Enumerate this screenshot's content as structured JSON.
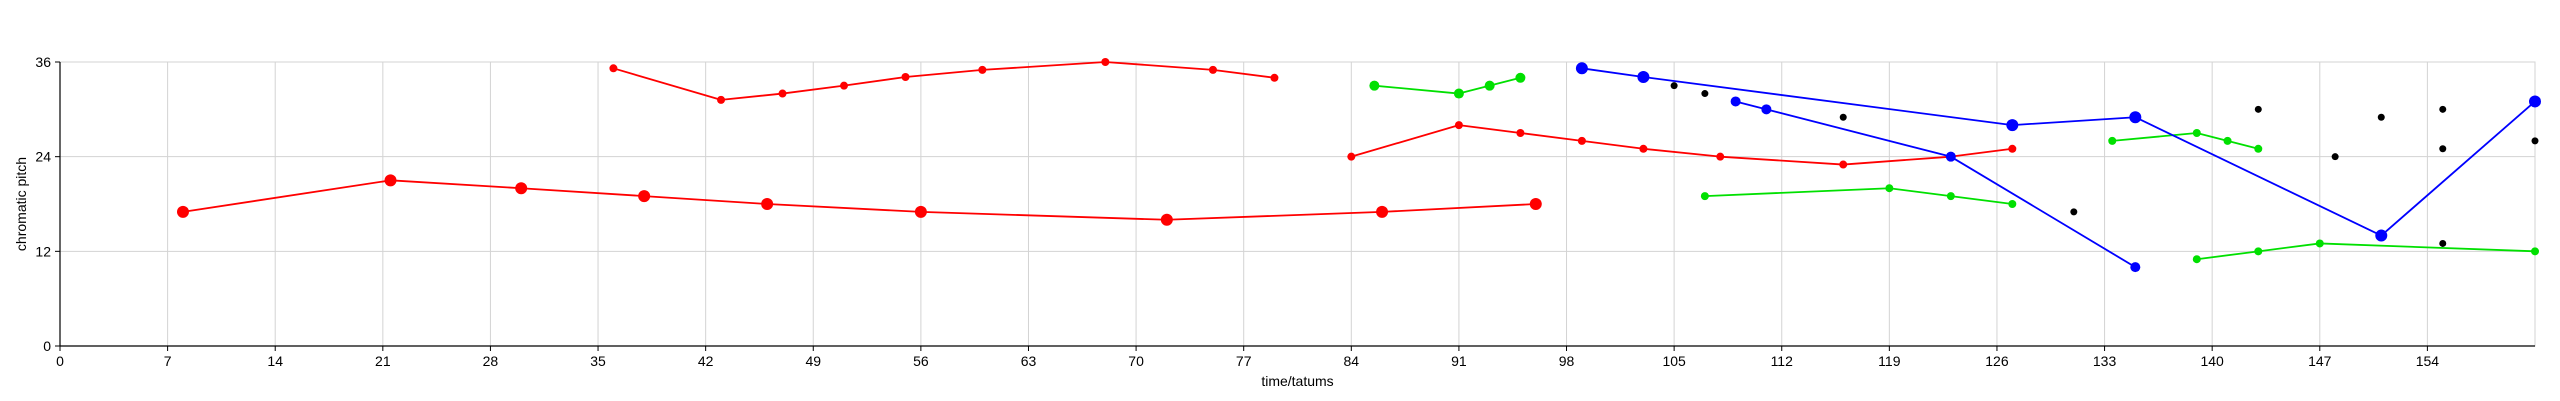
{
  "chart_data": {
    "type": "line",
    "xlabel": "time/tatums",
    "ylabel": "chromatic pitch",
    "xlim": [
      0,
      161
    ],
    "ylim": [
      0,
      36
    ],
    "xticks": [
      0,
      7,
      14,
      21,
      28,
      35,
      42,
      49,
      56,
      63,
      70,
      77,
      84,
      91,
      98,
      105,
      112,
      119,
      126,
      133,
      140,
      147,
      154
    ],
    "yticks": [
      0,
      12,
      24,
      36
    ],
    "grid": true,
    "colors": {
      "red": "#ff0000",
      "green": "#00e000",
      "blue": "#0000ff",
      "black": "#000000",
      "grid": "#d3d3d3"
    },
    "series": [
      {
        "color": "red",
        "size": "large",
        "points": [
          [
            8,
            17
          ],
          [
            21.5,
            21
          ],
          [
            30,
            20
          ],
          [
            38,
            19
          ],
          [
            46,
            18
          ],
          [
            56,
            17
          ],
          [
            72,
            16
          ],
          [
            86,
            17
          ],
          [
            96,
            18
          ]
        ]
      },
      {
        "color": "red",
        "size": "small",
        "points": [
          [
            36,
            35.2
          ],
          [
            43,
            31.2
          ],
          [
            47,
            32
          ],
          [
            51,
            33
          ],
          [
            55,
            34.1
          ],
          [
            60,
            35
          ],
          [
            68,
            36
          ],
          [
            75,
            35
          ],
          [
            79,
            34
          ]
        ]
      },
      {
        "color": "red",
        "size": "small",
        "points": [
          [
            84,
            24
          ],
          [
            91,
            28
          ],
          [
            95,
            27
          ],
          [
            99,
            26
          ],
          [
            103,
            25
          ],
          [
            108,
            24
          ],
          [
            116,
            23
          ],
          [
            123,
            24
          ],
          [
            127,
            25
          ]
        ]
      },
      {
        "color": "green",
        "size": "medium",
        "points": [
          [
            85.5,
            33
          ],
          [
            91,
            32
          ],
          [
            93,
            33
          ],
          [
            95,
            34
          ]
        ]
      },
      {
        "color": "green",
        "size": "small",
        "points": [
          [
            107,
            19
          ],
          [
            119,
            20
          ],
          [
            123,
            19
          ],
          [
            127,
            18
          ]
        ]
      },
      {
        "color": "green",
        "size": "small",
        "points": [
          [
            133.5,
            26
          ],
          [
            139,
            27
          ],
          [
            141,
            26
          ],
          [
            143,
            25
          ]
        ]
      },
      {
        "color": "green",
        "size": "small",
        "points": [
          [
            139,
            11
          ],
          [
            143,
            12
          ],
          [
            147,
            13
          ],
          [
            161,
            12
          ]
        ]
      },
      {
        "color": "blue",
        "size": "large",
        "points": [
          [
            99,
            35.2
          ],
          [
            103,
            34.1
          ],
          [
            127,
            28
          ],
          [
            135,
            29
          ],
          [
            151,
            14
          ],
          [
            161,
            31
          ]
        ]
      },
      {
        "color": "blue",
        "size": "medium",
        "points": [
          [
            109,
            31
          ],
          [
            111,
            30
          ],
          [
            123,
            24
          ],
          [
            135,
            10
          ]
        ]
      }
    ],
    "scatter": [
      {
        "color": "black",
        "points": [
          [
            105,
            33
          ],
          [
            107,
            32
          ],
          [
            116,
            29
          ],
          [
            131,
            17
          ],
          [
            143,
            30
          ],
          [
            148,
            24
          ],
          [
            151,
            29
          ],
          [
            155,
            30
          ],
          [
            155,
            25
          ],
          [
            155,
            13
          ],
          [
            161,
            26
          ]
        ]
      }
    ]
  }
}
